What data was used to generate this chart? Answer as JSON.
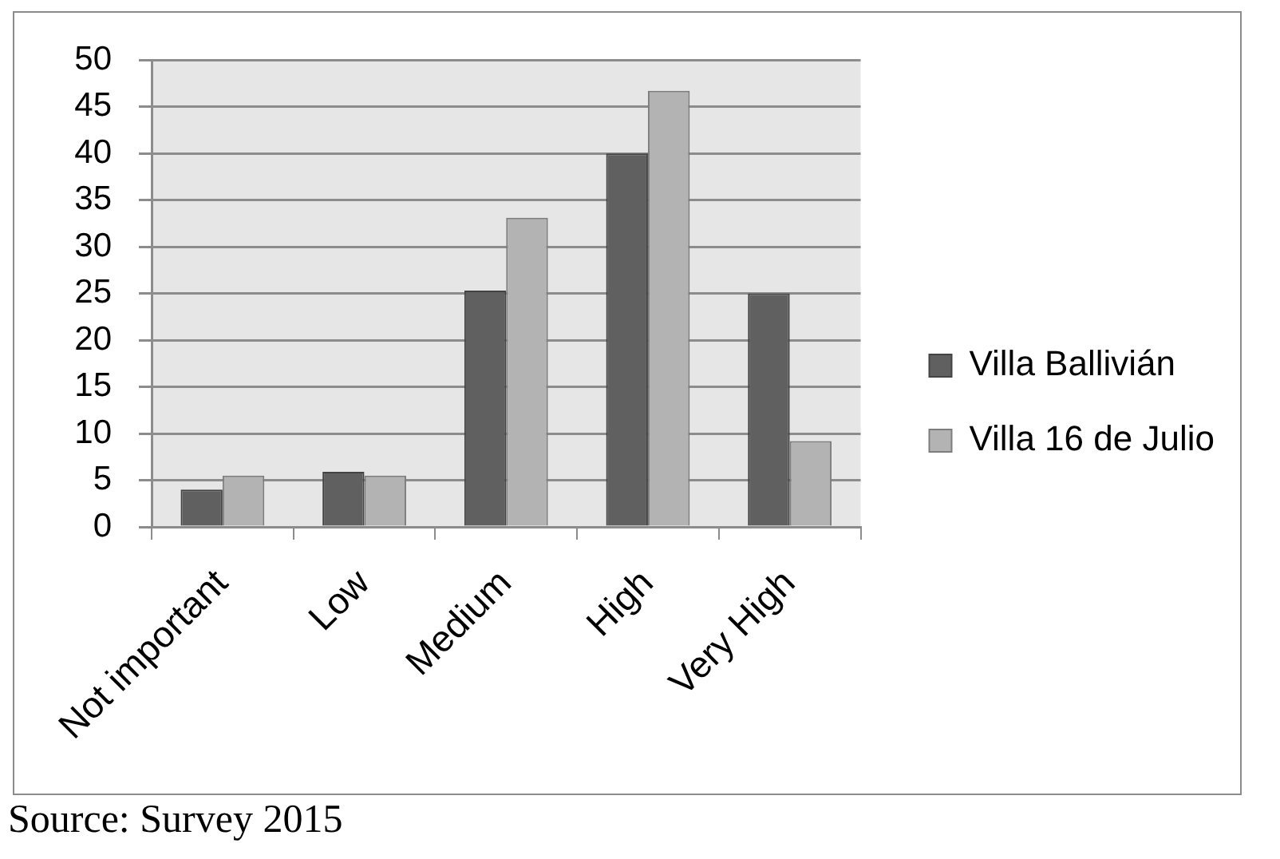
{
  "chart_data": {
    "type": "bar",
    "categories": [
      "Not important",
      "Low",
      "Medium",
      "High",
      "Very High"
    ],
    "series": [
      {
        "name": "Villa Ballivián",
        "color": "#606060",
        "values": [
          4,
          5.9,
          25.3,
          40,
          25
        ]
      },
      {
        "name": "Villa 16 de Julio",
        "color": "#b3b3b3",
        "values": [
          5.5,
          5.5,
          33.1,
          46.7,
          9.2
        ]
      }
    ],
    "ylim": [
      0,
      50
    ],
    "yticks": [
      0,
      5,
      10,
      15,
      20,
      25,
      30,
      35,
      40,
      45,
      50
    ],
    "grid": "y",
    "legend": "right",
    "annotations": [
      "Source: Survey 2015"
    ]
  }
}
